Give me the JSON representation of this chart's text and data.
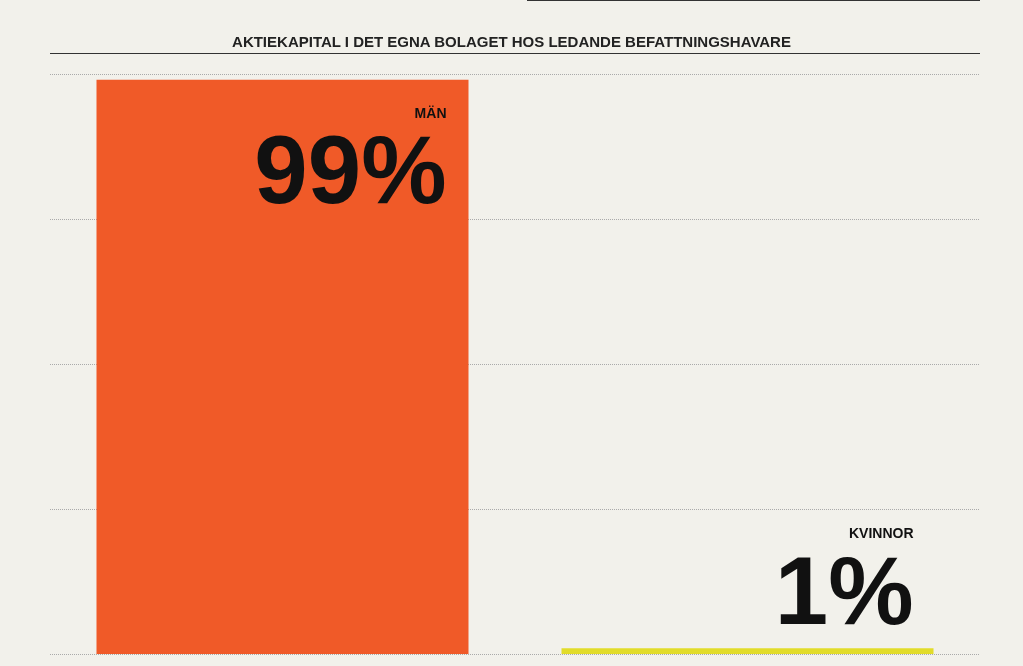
{
  "chart_data": {
    "type": "bar",
    "title": "AKTIEKAPITAL I DET EGNA BOLAGET HOS LEDANDE BEFATTNINGSHAVARE",
    "categories": [
      "MÄN",
      "KVINNOR"
    ],
    "values": [
      99,
      1
    ],
    "colors": [
      "#f05a28",
      "#e2dc2a"
    ],
    "value_labels": [
      "99%",
      "1%"
    ],
    "ylim": [
      0,
      100
    ],
    "yticks": [
      {
        "value": 0,
        "label": null
      },
      {
        "value": 25,
        "label": null
      },
      {
        "value": 50,
        "label": null
      },
      {
        "value": 75,
        "label": null
      },
      {
        "value": 100,
        "label": null
      }
    ],
    "grid": "y"
  }
}
